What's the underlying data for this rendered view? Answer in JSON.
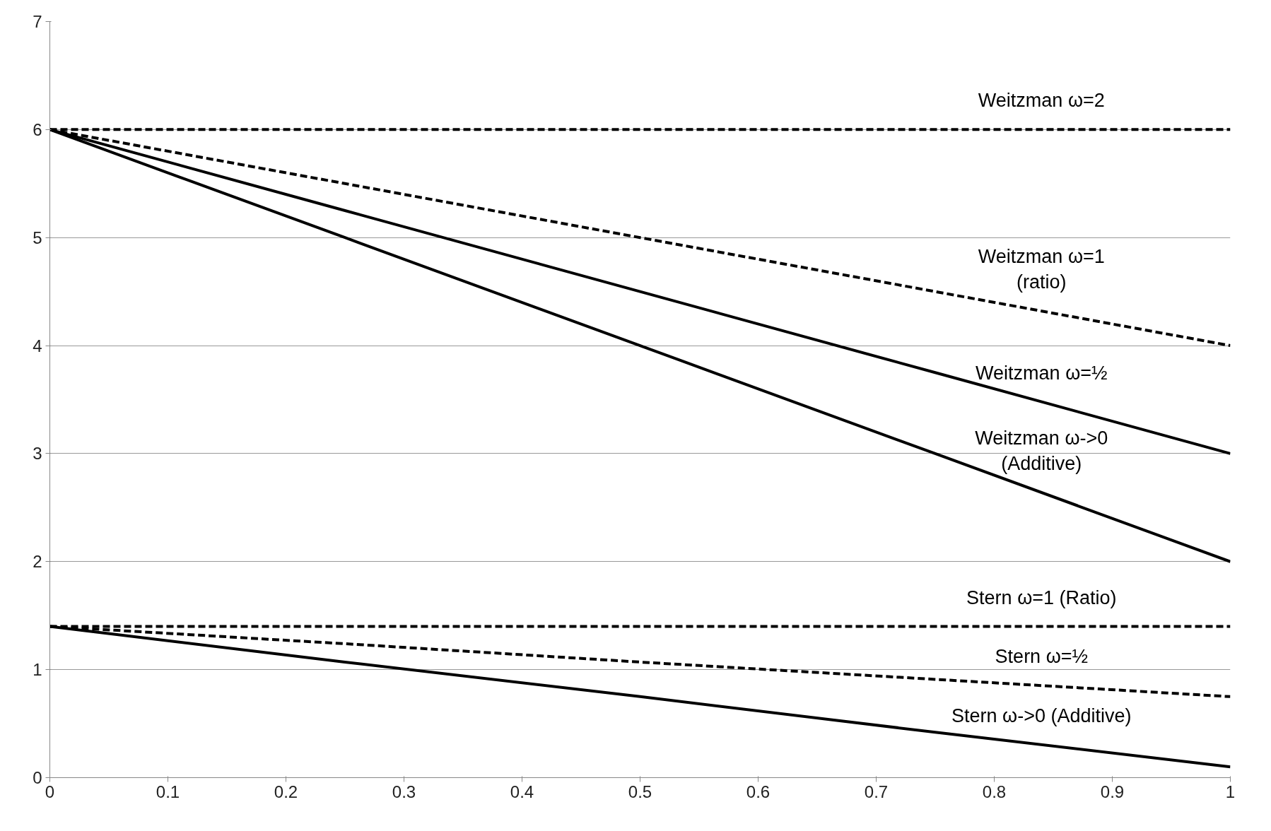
{
  "chart_data": {
    "type": "line",
    "x": [
      0,
      0.25,
      0.5,
      0.75,
      1
    ],
    "series": [
      {
        "name": "Weitzman ω=2",
        "color": "#000000",
        "line_style": "dashed",
        "values": [
          6,
          6,
          6,
          6,
          6
        ]
      },
      {
        "name": "Weitzman ω=1\n(ratio)",
        "color": "#000000",
        "line_style": "dashed",
        "values": [
          6,
          5.5,
          5,
          4.5,
          4
        ]
      },
      {
        "name": "Weitzman ω=½",
        "color": "#000000",
        "line_style": "solid",
        "values": [
          6,
          5.25,
          4.5,
          3.75,
          3
        ]
      },
      {
        "name": "Weitzman ω->0\n(Additive)",
        "color": "#000000",
        "line_style": "solid",
        "values": [
          6,
          5,
          4,
          3,
          2
        ]
      },
      {
        "name": "Stern ω=1 (Ratio)",
        "color": "#000000",
        "line_style": "dashed",
        "values": [
          1.4,
          1.4,
          1.4,
          1.4,
          1.4
        ]
      },
      {
        "name": "Stern ω=½",
        "color": "#000000",
        "line_style": "dashed",
        "values": [
          1.4,
          1.24,
          1.07,
          0.91,
          0.75
        ]
      },
      {
        "name": "Stern ω->0 (Additive)",
        "color": "#000000",
        "line_style": "solid",
        "values": [
          1.4,
          1.07,
          0.75,
          0.42,
          0.1
        ]
      }
    ],
    "xlim": [
      0,
      1
    ],
    "ylim": [
      0,
      7
    ],
    "xticks": [
      0,
      0.1,
      0.2,
      0.3,
      0.4,
      0.5,
      0.6,
      0.7,
      0.8,
      0.9,
      1
    ],
    "yticks": [
      0,
      1,
      2,
      3,
      4,
      5,
      6,
      7
    ],
    "grid": "y",
    "marker": "none"
  }
}
